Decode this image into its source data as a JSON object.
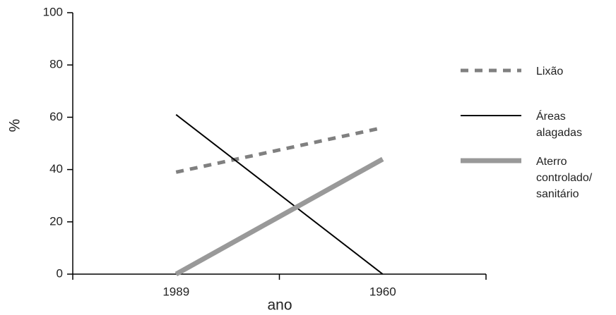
{
  "chart_data": {
    "type": "line",
    "categories": [
      "1989",
      "1960"
    ],
    "x_label": "ano",
    "y_label": "%",
    "series": [
      {
        "name": "Lixão",
        "color": "#808080",
        "style": "dashed",
        "width": 5,
        "values": [
          39,
          56
        ]
      },
      {
        "name": "Áreas alagadas",
        "color": "#000000",
        "style": "solid",
        "width": 2,
        "values": [
          61,
          0
        ]
      },
      {
        "name": "Aterro controlado/ sanitário",
        "color": "#999999",
        "style": "solid",
        "width": 7,
        "values": [
          0,
          44
        ]
      }
    ],
    "ylim": [
      0,
      100
    ],
    "yticks": [
      0,
      20,
      40,
      60,
      80,
      100
    ]
  }
}
